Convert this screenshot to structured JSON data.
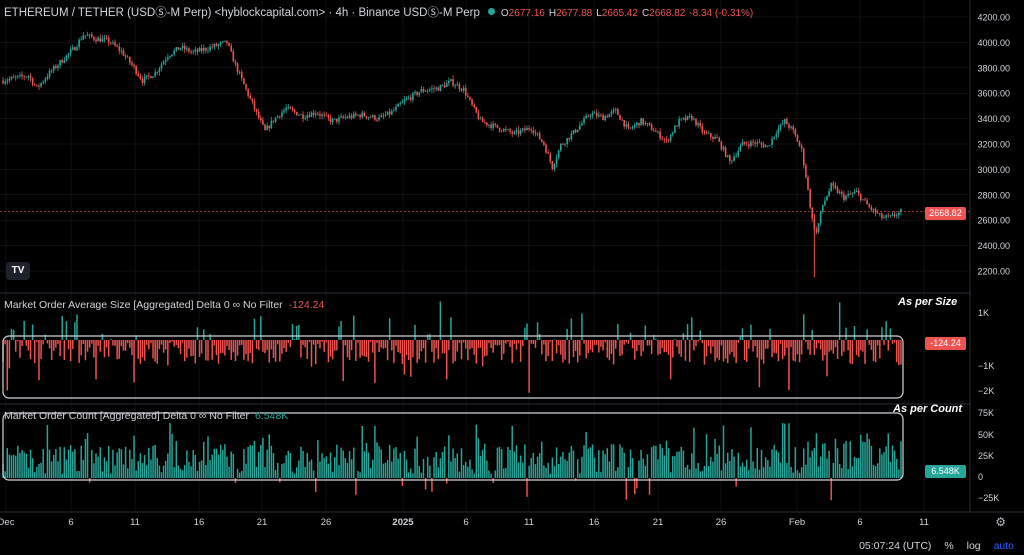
{
  "header": {
    "symbol": "ETHEREUM / TETHER (USDⓈ-M Perp) <hyblockcapital.com> · 4h · Binance USDⓈ-M Perp",
    "open_label": "O",
    "open": "2677.16",
    "high_label": "H",
    "high": "2677.88",
    "low_label": "L",
    "low": "2665.42",
    "close_label": "C",
    "close": "2668.82",
    "change": "-8.34 (-0.31%)"
  },
  "indicators": {
    "size": {
      "title": "Market Order Average Size [Aggregated] Delta 0 ∞ No Filter",
      "value": "-124.24",
      "note": "As per Size"
    },
    "count": {
      "title": "Market Order Count [Aggregated] Delta 0 ∞ No Filter",
      "value": "6.548K",
      "note": "As per Count"
    }
  },
  "status": {
    "time": "05:07:24 (UTC)",
    "percent": "%",
    "log": "log",
    "auto": "auto"
  },
  "logo_text": "TV",
  "gear_icon": "gear-icon",
  "colors": {
    "up": "#26a69a",
    "down": "#ef5350",
    "bg": "#000000",
    "grid": "#1e222d",
    "box": "#d1d4dc"
  },
  "chart_data": [
    {
      "type": "candlestick",
      "title": "ETHEREUM / TETHER (USDⓈ-M Perp) 4h",
      "x_ticks": [
        "Dec",
        "6",
        "11",
        "16",
        "21",
        "26",
        "2025",
        "6",
        "11",
        "16",
        "21",
        "26",
        "Feb",
        "6",
        "11"
      ],
      "y_ticks": [
        2200,
        2400,
        2600,
        2800,
        3000,
        3200,
        3400,
        3600,
        3800,
        4000,
        4200
      ],
      "ylim": [
        2100,
        4300
      ],
      "last_price": 2668.82,
      "path_anchors": [
        [
          0,
          3700
        ],
        [
          6,
          3720
        ],
        [
          12,
          3740
        ],
        [
          16,
          3640
        ],
        [
          22,
          3760
        ],
        [
          28,
          3860
        ],
        [
          34,
          3960
        ],
        [
          38,
          4060
        ],
        [
          44,
          4030
        ],
        [
          50,
          4010
        ],
        [
          56,
          3930
        ],
        [
          62,
          3800
        ],
        [
          66,
          3700
        ],
        [
          72,
          3760
        ],
        [
          78,
          3900
        ],
        [
          84,
          3960
        ],
        [
          90,
          3920
        ],
        [
          98,
          3960
        ],
        [
          106,
          4000
        ],
        [
          110,
          3820
        ],
        [
          116,
          3590
        ],
        [
          120,
          3440
        ],
        [
          124,
          3300
        ],
        [
          128,
          3390
        ],
        [
          134,
          3480
        ],
        [
          142,
          3420
        ],
        [
          148,
          3450
        ],
        [
          156,
          3380
        ],
        [
          162,
          3410
        ],
        [
          170,
          3430
        ],
        [
          178,
          3400
        ],
        [
          184,
          3450
        ],
        [
          190,
          3540
        ],
        [
          198,
          3620
        ],
        [
          206,
          3640
        ],
        [
          212,
          3690
        ],
        [
          218,
          3630
        ],
        [
          222,
          3500
        ],
        [
          226,
          3380
        ],
        [
          234,
          3330
        ],
        [
          242,
          3280
        ],
        [
          250,
          3330
        ],
        [
          256,
          3200
        ],
        [
          260,
          3020
        ],
        [
          264,
          3190
        ],
        [
          270,
          3290
        ],
        [
          278,
          3440
        ],
        [
          284,
          3410
        ],
        [
          290,
          3460
        ],
        [
          296,
          3310
        ],
        [
          302,
          3380
        ],
        [
          308,
          3310
        ],
        [
          314,
          3220
        ],
        [
          320,
          3380
        ],
        [
          326,
          3410
        ],
        [
          332,
          3280
        ],
        [
          338,
          3240
        ],
        [
          344,
          3060
        ],
        [
          350,
          3200
        ],
        [
          356,
          3210
        ],
        [
          362,
          3180
        ],
        [
          366,
          3300
        ],
        [
          370,
          3380
        ],
        [
          374,
          3300
        ],
        [
          378,
          3150
        ],
        [
          380,
          2950
        ],
        [
          383,
          2600
        ],
        [
          385,
          2500
        ],
        [
          388,
          2720
        ],
        [
          392,
          2870
        ],
        [
          398,
          2780
        ],
        [
          404,
          2820
        ],
        [
          410,
          2700
        ],
        [
          416,
          2620
        ],
        [
          420,
          2620
        ],
        [
          425,
          2668
        ]
      ]
    },
    {
      "type": "bar",
      "title": "Market Order Average Size [Aggregated] Delta 0 ∞ No Filter",
      "last_value": -124.24,
      "y_ticks": [
        "1K",
        "−1K",
        "−2K"
      ],
      "ylim": [
        -2300,
        1600
      ]
    },
    {
      "type": "bar",
      "title": "Market Order Count [Aggregated] Delta 0 ∞ No Filter",
      "last_value": 6548,
      "y_ticks": [
        "75K",
        "50K",
        "25K",
        "0",
        "−25K"
      ],
      "ylim": [
        -35000,
        80000
      ]
    }
  ]
}
